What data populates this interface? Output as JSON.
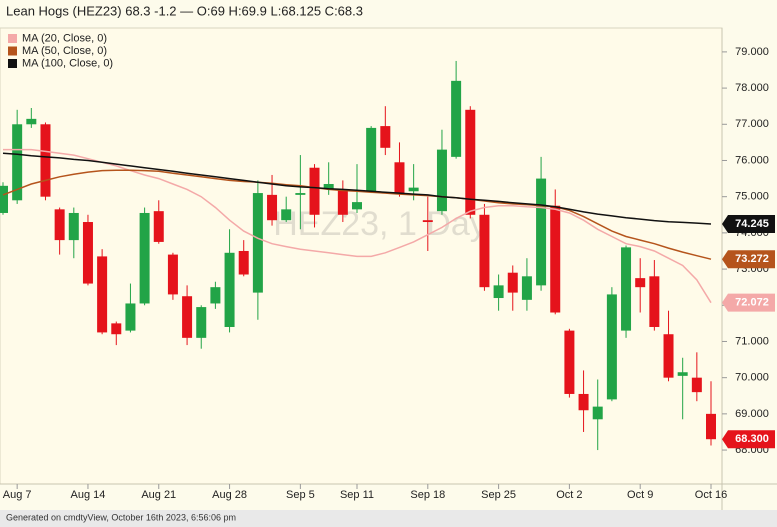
{
  "chart_data": {
    "type": "candlestick",
    "title": "Lean Hogs (HEZ23) 68.3 -1.2 — O:69 H:69.9 L:68.125 C:68.3",
    "watermark": "HEZ23, 1 Day",
    "footer": "Generated on cmdtyView, October 16th 2023, 6:56:06 pm",
    "x": [
      null,
      "Aug 7",
      null,
      null,
      null,
      null,
      "Aug 14",
      null,
      null,
      null,
      null,
      "Aug 21",
      null,
      null,
      null,
      null,
      "Aug 28",
      null,
      null,
      null,
      null,
      "Sep 5",
      null,
      null,
      null,
      "Sep 11",
      null,
      null,
      null,
      null,
      "Sep 18",
      null,
      null,
      null,
      null,
      "Sep 25",
      null,
      null,
      null,
      null,
      "Oct 2",
      null,
      null,
      null,
      null,
      "Oct 9",
      null,
      null,
      null,
      null,
      "Oct 16"
    ],
    "open": [
      74.55,
      74.9,
      77.0,
      77.0,
      74.65,
      73.8,
      74.3,
      73.35,
      71.5,
      71.3,
      72.05,
      74.6,
      73.4,
      72.25,
      71.1,
      72.05,
      71.4,
      73.5,
      72.35,
      75.05,
      74.35,
      75.05,
      75.8,
      75.2,
      75.2,
      74.65,
      75.15,
      76.95,
      75.95,
      75.15,
      74.35,
      74.6,
      76.1,
      77.4,
      74.5,
      72.2,
      72.9,
      72.15,
      72.55,
      74.75,
      71.3,
      69.55,
      68.85,
      69.4,
      71.3,
      72.75,
      72.8,
      71.2,
      70.05,
      70.0,
      69
    ],
    "high": [
      75.4,
      77.4,
      77.45,
      77.05,
      74.7,
      74.7,
      74.5,
      73.55,
      71.55,
      72.6,
      74.7,
      74.9,
      73.45,
      72.55,
      72.0,
      72.65,
      74.1,
      73.8,
      75.45,
      75.6,
      75.0,
      76.15,
      75.9,
      75.95,
      75.45,
      75.9,
      76.95,
      77.5,
      76.5,
      75.9,
      75.0,
      76.85,
      78.75,
      77.5,
      74.8,
      72.85,
      73.1,
      73.3,
      76.1,
      75.2,
      71.35,
      70.2,
      69.95,
      72.5,
      73.65,
      73.3,
      73.25,
      71.85,
      70.55,
      70.7,
      69.9
    ],
    "low": [
      74.5,
      74.8,
      76.9,
      74.9,
      73.4,
      73.3,
      72.55,
      71.2,
      70.9,
      71.25,
      72.0,
      73.7,
      72.15,
      70.9,
      70.8,
      71.9,
      71.25,
      72.8,
      71.6,
      74.2,
      74.3,
      74.1,
      74.15,
      75.05,
      74.3,
      74.55,
      75.1,
      76.15,
      75.0,
      74.9,
      73.5,
      74.5,
      76.05,
      74.4,
      72.4,
      71.85,
      71.85,
      71.85,
      72.4,
      71.75,
      69.45,
      68.5,
      68.0,
      69.35,
      71.1,
      71.8,
      71.3,
      69.9,
      68.85,
      69.35,
      68.125
    ],
    "close": [
      75.3,
      77.0,
      77.15,
      75.0,
      73.8,
      74.55,
      72.6,
      71.25,
      71.2,
      72.05,
      74.55,
      73.75,
      72.3,
      71.1,
      71.95,
      72.5,
      73.45,
      72.85,
      75.1,
      74.35,
      74.65,
      75.1,
      74.5,
      75.35,
      74.5,
      74.85,
      76.9,
      76.35,
      75.1,
      75.25,
      74.3,
      76.3,
      78.2,
      74.5,
      72.5,
      72.55,
      72.35,
      72.8,
      75.5,
      71.8,
      69.55,
      69.1,
      69.2,
      72.3,
      73.6,
      72.5,
      71.4,
      70.0,
      70.15,
      69.6,
      68.3
    ],
    "last_label": "68.300",
    "up_color": "#22a447",
    "down_color": "#e5131b",
    "series": [
      {
        "name": "MA (20, Close, 0)",
        "color": "#f4a9a8",
        "values": [
          76.3,
          76.3,
          76.3,
          76.25,
          76.2,
          76.15,
          76.05,
          75.95,
          75.85,
          75.72,
          75.6,
          75.5,
          75.35,
          75.2,
          75.0,
          74.7,
          74.35,
          74.05,
          73.85,
          73.7,
          73.62,
          73.55,
          73.5,
          73.45,
          73.4,
          73.35,
          73.35,
          73.45,
          73.6,
          73.75,
          73.95,
          74.15,
          74.4,
          74.6,
          74.7,
          74.75,
          74.75,
          74.72,
          74.7,
          74.65,
          74.55,
          74.35,
          74.1,
          73.9,
          73.7,
          73.62,
          73.5,
          73.3,
          73.1,
          72.7,
          72.072
        ]
      },
      {
        "name": "MA (50, Close, 0)",
        "color": "#b5541c",
        "values": [
          75.05,
          75.2,
          75.35,
          75.45,
          75.55,
          75.62,
          75.68,
          75.72,
          75.73,
          75.73,
          75.72,
          75.7,
          75.65,
          75.6,
          75.55,
          75.5,
          75.45,
          75.42,
          75.4,
          75.37,
          75.33,
          75.3,
          75.25,
          75.2,
          75.17,
          75.15,
          75.12,
          75.1,
          75.07,
          75.05,
          75.03,
          75.0,
          74.97,
          74.93,
          74.88,
          74.83,
          74.8,
          74.78,
          74.75,
          74.72,
          74.62,
          74.45,
          74.25,
          74.05,
          73.9,
          73.8,
          73.7,
          73.58,
          73.47,
          73.37,
          73.272
        ]
      },
      {
        "name": "MA (100, Close, 0)",
        "color": "#111111",
        "values": [
          76.2,
          76.17,
          76.13,
          76.1,
          76.07,
          76.03,
          76.0,
          75.95,
          75.9,
          75.85,
          75.8,
          75.75,
          75.7,
          75.65,
          75.6,
          75.55,
          75.5,
          75.45,
          75.4,
          75.35,
          75.3,
          75.27,
          75.25,
          75.22,
          75.2,
          75.18,
          75.15,
          75.12,
          75.1,
          75.07,
          75.05,
          75.0,
          74.97,
          74.93,
          74.9,
          74.87,
          74.83,
          74.8,
          74.77,
          74.72,
          74.65,
          74.58,
          74.52,
          74.47,
          74.42,
          74.38,
          74.34,
          74.31,
          74.29,
          74.27,
          74.245
        ]
      }
    ],
    "ylim": [
      67.09,
      79.66
    ],
    "yticks": [
      {
        "value": 68,
        "label": "68.000"
      },
      {
        "value": 69,
        "label": "69.000"
      },
      {
        "value": 70,
        "label": "70.000"
      },
      {
        "value": 71,
        "label": "71.000"
      },
      {
        "value": 72,
        "label": "72.000"
      },
      {
        "value": 73,
        "label": "73.000"
      },
      {
        "value": 74,
        "label": "74.000"
      },
      {
        "value": 75,
        "label": "75.000"
      },
      {
        "value": 76,
        "label": "76.000"
      },
      {
        "value": 77,
        "label": "77.000"
      },
      {
        "value": 78,
        "label": "78.000"
      },
      {
        "value": 79,
        "label": "79.000"
      }
    ]
  }
}
